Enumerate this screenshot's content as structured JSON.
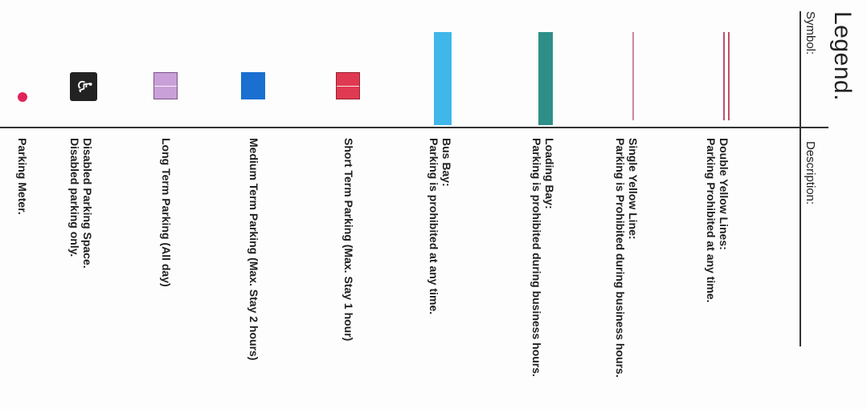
{
  "legend": {
    "title": "Legend.",
    "symbol_header": "Symbol:",
    "description_header": "Description:",
    "items": [
      {
        "key": "double-yellow-lines",
        "icon": "double-line-icon",
        "color": "#c0506a",
        "line1": "Double Yellow Lines:",
        "line2": "Parking Prohibited at any time."
      },
      {
        "key": "single-yellow-line",
        "icon": "single-line-icon",
        "color": "#c98a98",
        "line1": "Single Yellow Line:",
        "line2": "Parking is Prohibited during business hours."
      },
      {
        "key": "loading-bay",
        "icon": "loading-bay-bar-icon",
        "color": "#2e8f88",
        "line1": "Loading Bay:",
        "line2": "Parking is prohibited during business hours."
      },
      {
        "key": "bus-bay",
        "icon": "bus-bay-bar-icon",
        "color": "#3fb7ea",
        "line1": "Bus Bay:",
        "line2": "Parking is prohibited at any time."
      },
      {
        "key": "short-term",
        "icon": "short-term-box-icon",
        "color": "#e03a52",
        "line1": "Short Term Parking  (Max. Stay 1 hour)",
        "line2": ""
      },
      {
        "key": "medium-term",
        "icon": "medium-term-box-icon",
        "color": "#1a6fd0",
        "line1": "Medium Term Parking   (Max. Stay 2 hours)",
        "line2": ""
      },
      {
        "key": "long-term",
        "icon": "long-term-box-icon",
        "color": "#c9a0d8",
        "line1": "Long Term Parking   (All day)",
        "line2": ""
      },
      {
        "key": "disabled",
        "icon": "wheelchair-icon",
        "color": "#222222",
        "line1": "Disabled Parking Space.",
        "line2": "Disabled parking only."
      },
      {
        "key": "meter",
        "icon": "parking-meter-dot-icon",
        "color": "#e0245a",
        "line1": "Parking Meter.",
        "line2": ""
      }
    ]
  }
}
